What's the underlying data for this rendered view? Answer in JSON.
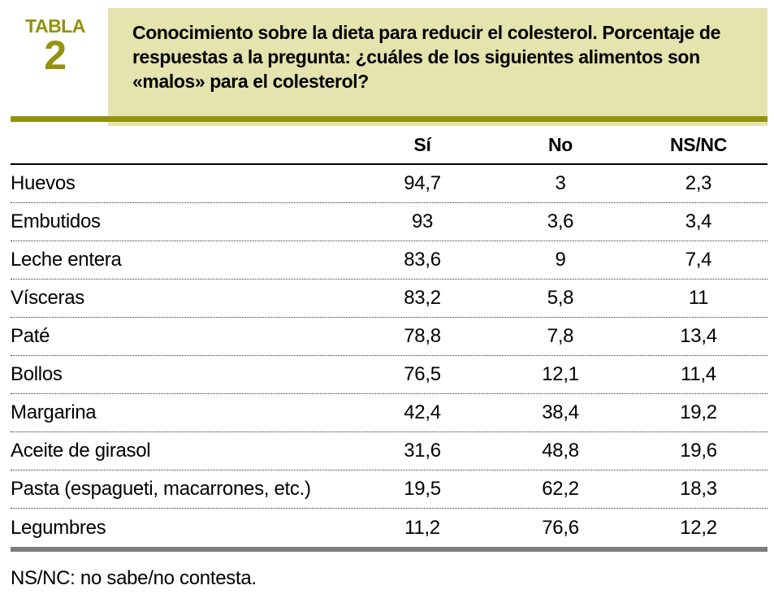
{
  "badge": {
    "kicker": "TABLA",
    "number": "2"
  },
  "title": "Conocimiento sobre la dieta para reducir el colesterol. Porcentaje de respuestas a la pregunta: ¿cuáles de los siguientes alimentos son «malos» para el colesterol?",
  "table": {
    "columns": [
      "Sí",
      "No",
      "NS/NC"
    ],
    "rows": [
      {
        "label": "Huevos",
        "si": "94,7",
        "no": "3",
        "nsnc": "2,3"
      },
      {
        "label": "Embutidos",
        "si": "93",
        "no": "3,6",
        "nsnc": "3,4"
      },
      {
        "label": "Leche entera",
        "si": "83,6",
        "no": "9",
        "nsnc": "7,4"
      },
      {
        "label": "Vísceras",
        "si": "83,2",
        "no": "5,8",
        "nsnc": "11"
      },
      {
        "label": "Paté",
        "si": "78,8",
        "no": "7,8",
        "nsnc": "13,4"
      },
      {
        "label": "Bollos",
        "si": "76,5",
        "no": "12,1",
        "nsnc": "11,4"
      },
      {
        "label": "Margarina",
        "si": "42,4",
        "no": "38,4",
        "nsnc": "19,2"
      },
      {
        "label": "Aceite de girasol",
        "si": "31,6",
        "no": "48,8",
        "nsnc": "19,6"
      },
      {
        "label": "Pasta (espagueti, macarrones, etc.)",
        "si": "19,5",
        "no": "62,2",
        "nsnc": "18,3"
      },
      {
        "label": "Legumbres",
        "si": "11,2",
        "no": "76,6",
        "nsnc": "12,2"
      }
    ]
  },
  "footnote": "NS/NC: no sabe/no contesta.",
  "colors": {
    "olive": "#93910e",
    "banner_background": "#e5e3ae",
    "bottom_rule_gray": "#7c7c7c"
  }
}
